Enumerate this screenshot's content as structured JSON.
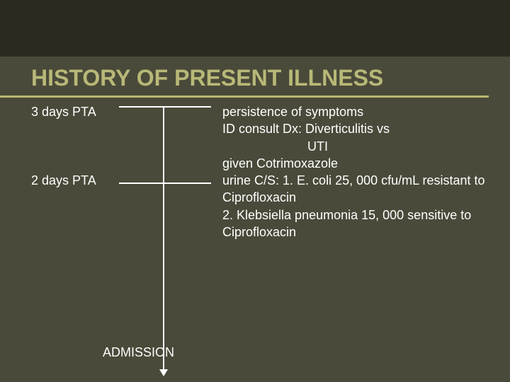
{
  "slide": {
    "title": "HISTORY OF PRESENT ILLNESS",
    "title_color": "#b8b878",
    "title_fontsize": 32,
    "underline_color": "#b8b870",
    "top_bar_color": "#2a2a20",
    "background_color": "#4a4a3a",
    "text_color": "#ffffff",
    "body_fontsize": 18
  },
  "timeline": {
    "line_color": "#ffffff",
    "arrow_color": "#ffffff",
    "admission_label": "ADMISSION",
    "events": [
      {
        "time_label": "3 days PTA",
        "details": [
          "persistence of symptoms",
          "ID consult Dx:  Diverticulitis vs",
          "UTI",
          "given Cotrimoxazole"
        ],
        "indent_line_indexes": [
          2
        ]
      },
      {
        "time_label": "2 days PTA",
        "details": [
          "urine C/S:  1. E. coli 25, 000 cfu/mL resistant to Ciprofloxacin",
          "2. Klebsiella pneumonia 15, 000 sensitive to Ciprofloxacin"
        ],
        "indent_line_indexes": []
      }
    ]
  }
}
